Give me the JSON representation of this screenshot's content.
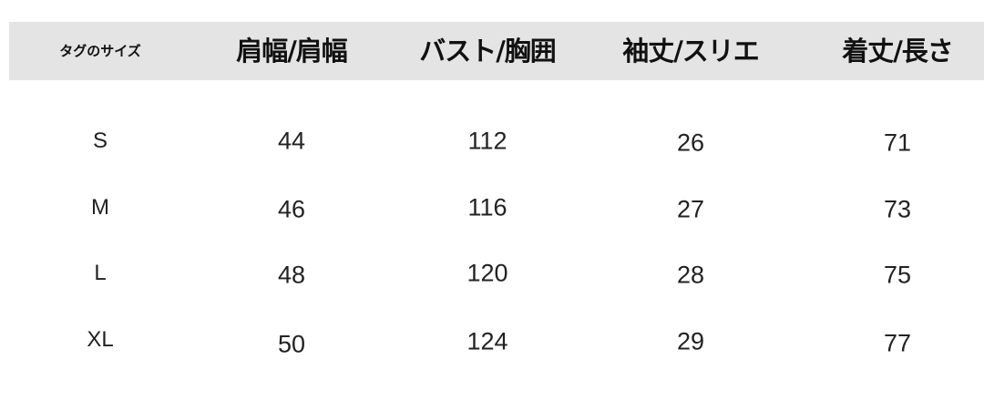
{
  "table": {
    "headers": [
      "タグのサイズ",
      "肩幅/肩幅",
      "バスト/胸囲",
      "袖丈/スリエ",
      "着丈/長さ"
    ],
    "rows": [
      [
        "S",
        "44",
        "112",
        "26",
        "71"
      ],
      [
        "M",
        "46",
        "116",
        "27",
        "73"
      ],
      [
        "L",
        "48",
        "120",
        "28",
        "75"
      ],
      [
        "XL",
        "50",
        "124",
        "29",
        "77"
      ]
    ]
  },
  "colors": {
    "header_background": "#e4e4e4",
    "text": "#222222"
  }
}
